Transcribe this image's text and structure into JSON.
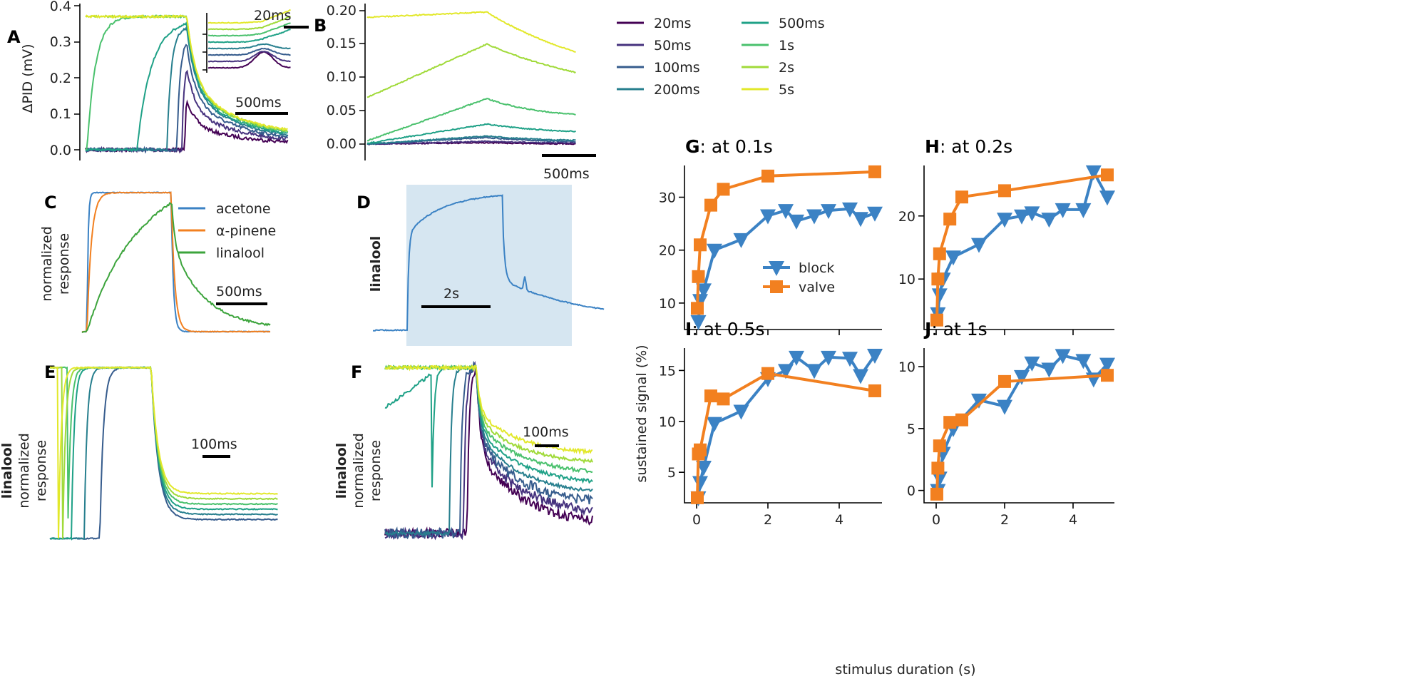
{
  "legend_durations": [
    "20ms",
    "50ms",
    "100ms",
    "200ms",
    "500ms",
    "1s",
    "2s",
    "5s"
  ],
  "viridis": [
    "#440154",
    "#46327e",
    "#365c8d",
    "#277f8e",
    "#1fa187",
    "#4ac16d",
    "#a0da39",
    "#e2e82a"
  ],
  "odor_colors": {
    "acetone": "#3b82c4",
    "pinene": "#f28020",
    "linalool": "#3ca43c"
  },
  "block_color": "#3b82c4",
  "valve_color": "#f28020",
  "panel_a": {
    "letter": "A",
    "ylabel": "ΔPID (mV)",
    "yticks": [
      "0.0",
      "0.1",
      "0.2",
      "0.3",
      "0.4"
    ],
    "scalebar": "500ms",
    "inset_scalebar": "20ms"
  },
  "panel_b": {
    "letter": "B",
    "yticks": [
      "0.00",
      "0.05",
      "0.10",
      "0.15",
      "0.20"
    ],
    "scalebar": "500ms"
  },
  "panel_c": {
    "letter": "C",
    "ylabel1": "normalized",
    "ylabel2": "response",
    "scalebar": "500ms",
    "legend": [
      "acetone",
      "α-pinene",
      "linalool"
    ]
  },
  "panel_d": {
    "letter": "D",
    "ylabel": "linalool",
    "scalebar": "2s"
  },
  "panel_e": {
    "letter": "E",
    "ylabel0": "linalool",
    "ylabel1": "normalized",
    "ylabel2": "response",
    "scalebar": "100ms"
  },
  "panel_f": {
    "letter": "F",
    "ylabel0": "linalool",
    "ylabel1": "normalized",
    "ylabel2": "response",
    "scalebar": "100ms"
  },
  "summary": {
    "ylabel": "sustained signal (%)",
    "xlabel": "stimulus duration (s)",
    "legend": [
      "block",
      "valve"
    ]
  },
  "chart_data": [
    {
      "panel": "G",
      "title": "at 0.1s",
      "type": "line",
      "xlim": [
        -0.2,
        5.2
      ],
      "ylim": [
        5,
        36
      ],
      "yticks": [
        10,
        20,
        30
      ],
      "xticks": [
        0,
        2,
        4
      ],
      "series": [
        {
          "name": "block",
          "x": [
            0.05,
            0.1,
            0.2,
            0.5,
            1.25,
            2,
            2.5,
            2.8,
            3.3,
            3.7,
            4.3,
            4.6,
            5
          ],
          "y": [
            6.5,
            10.5,
            12.5,
            20,
            22,
            26.5,
            27.5,
            25.5,
            26.5,
            27.5,
            27.8,
            26,
            27
          ]
        },
        {
          "name": "valve",
          "x": [
            0.02,
            0.05,
            0.1,
            0.4,
            0.75,
            2,
            5
          ],
          "y": [
            9,
            15,
            21,
            28.5,
            31.5,
            34,
            34.8
          ]
        }
      ]
    },
    {
      "panel": "H",
      "title": "at 0.2s",
      "type": "line",
      "xlim": [
        -0.2,
        5.2
      ],
      "ylim": [
        2,
        28
      ],
      "yticks": [
        10,
        20
      ],
      "xticks": [
        0,
        2,
        4
      ],
      "series": [
        {
          "name": "block",
          "x": [
            0.05,
            0.1,
            0.2,
            0.5,
            1.25,
            2,
            2.5,
            2.8,
            3.3,
            3.7,
            4.3,
            4.6,
            5
          ],
          "y": [
            4.5,
            7.5,
            10,
            13.5,
            15.5,
            19.5,
            20,
            20.5,
            19.5,
            21,
            21,
            27,
            23
          ]
        },
        {
          "name": "valve",
          "x": [
            0.02,
            0.05,
            0.1,
            0.4,
            0.75,
            2,
            5
          ],
          "y": [
            3.5,
            10,
            14,
            19.5,
            23,
            24,
            26.5
          ]
        }
      ]
    },
    {
      "panel": "I",
      "title": "at 0.5s",
      "type": "line",
      "xlim": [
        -0.2,
        5.2
      ],
      "ylim": [
        2,
        17.2
      ],
      "yticks": [
        5,
        10,
        15
      ],
      "xticks": [
        0,
        2,
        4
      ],
      "series": [
        {
          "name": "block",
          "x": [
            0.05,
            0.1,
            0.2,
            0.5,
            1.25,
            2,
            2.5,
            2.8,
            3.3,
            3.7,
            4.3,
            4.6,
            5
          ],
          "y": [
            2.5,
            4,
            5.5,
            9.8,
            11,
            14.2,
            15,
            16.3,
            15,
            16.3,
            16.2,
            14.5,
            16.5
          ]
        },
        {
          "name": "valve",
          "x": [
            0.02,
            0.05,
            0.1,
            0.4,
            0.75,
            2,
            5
          ],
          "y": [
            2.5,
            6.8,
            7.2,
            12.5,
            12.2,
            14.7,
            13
          ]
        }
      ]
    },
    {
      "panel": "J",
      "title": "at 1s",
      "type": "line",
      "xlim": [
        -0.2,
        5.2
      ],
      "ylim": [
        -1,
        11.5
      ],
      "yticks": [
        0,
        5,
        10
      ],
      "xticks": [
        0,
        2,
        4
      ],
      "series": [
        {
          "name": "block",
          "x": [
            0.05,
            0.1,
            0.2,
            0.5,
            1.25,
            2,
            2.5,
            2.8,
            3.3,
            3.7,
            4.3,
            4.6,
            5
          ],
          "y": [
            0,
            1,
            3,
            5,
            7.3,
            6.8,
            9.2,
            10.3,
            9.8,
            10.9,
            10.5,
            9,
            10.2
          ]
        },
        {
          "name": "valve",
          "x": [
            0.02,
            0.05,
            0.1,
            0.4,
            0.75,
            2,
            5
          ],
          "y": [
            -0.3,
            1.8,
            3.6,
            5.5,
            5.7,
            8.8,
            9.3
          ]
        }
      ]
    }
  ]
}
